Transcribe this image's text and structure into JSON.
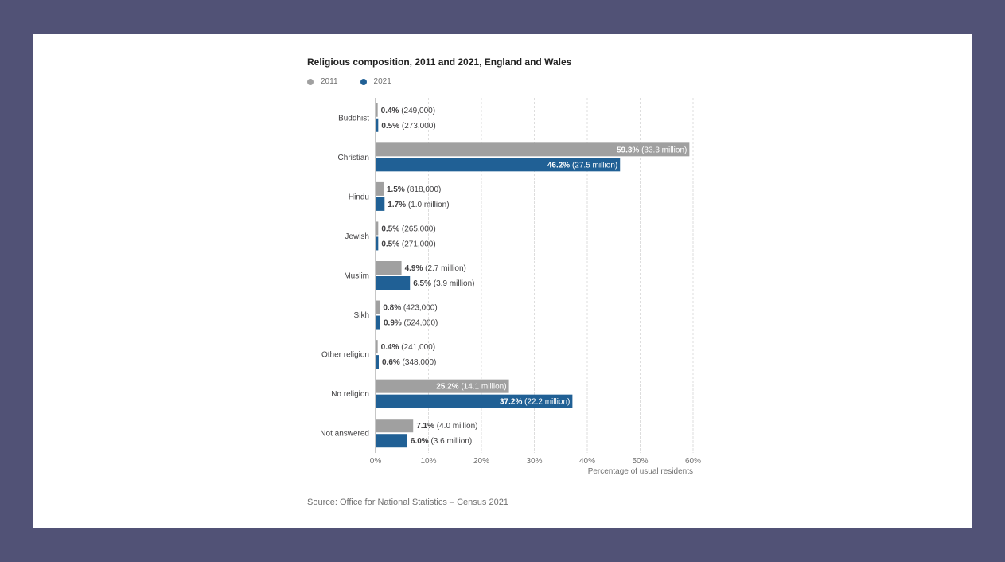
{
  "title": "Religious composition, 2011 and 2021, England and Wales",
  "source": "Source: Office for National Statistics – Census 2021",
  "colors": {
    "s2011": "#a0a0a0",
    "s2021": "#206095",
    "grid": "#dddddd",
    "axis": "#8c8c8c",
    "background": "#515276"
  },
  "chart_data": {
    "type": "bar",
    "orientation": "horizontal",
    "title": "Religious composition, 2011 and 2021, England and Wales",
    "xlabel": "Percentage of usual residents",
    "ylabel": "",
    "xlim": [
      0,
      60
    ],
    "xticks": [
      0,
      10,
      20,
      30,
      40,
      50,
      60
    ],
    "xtick_labels": [
      "0%",
      "10%",
      "20%",
      "30%",
      "40%",
      "50%",
      "60%"
    ],
    "grid": "vertical dashed",
    "legend_position": "top-left",
    "categories": [
      "Buddhist",
      "Christian",
      "Hindu",
      "Jewish",
      "Muslim",
      "Sikh",
      "Other religion",
      "No religion",
      "Not answered"
    ],
    "series": [
      {
        "name": "2011",
        "values": [
          0.4,
          59.3,
          1.5,
          0.5,
          4.9,
          0.8,
          0.4,
          25.2,
          7.1
        ],
        "value_labels": [
          "0.4%",
          "59.3%",
          "1.5%",
          "0.5%",
          "4.9%",
          "0.8%",
          "0.4%",
          "25.2%",
          "7.1%"
        ],
        "count_labels": [
          "(249,000)",
          "(33.3 million)",
          "(818,000)",
          "(265,000)",
          "(2.7 million)",
          "(423,000)",
          "(241,000)",
          "(14.1 million)",
          "(4.0 million)"
        ]
      },
      {
        "name": "2021",
        "values": [
          0.5,
          46.2,
          1.7,
          0.5,
          6.5,
          0.9,
          0.6,
          37.2,
          6.0
        ],
        "value_labels": [
          "0.5%",
          "46.2%",
          "1.7%",
          "0.5%",
          "6.5%",
          "0.9%",
          "0.6%",
          "37.2%",
          "6.0%"
        ],
        "count_labels": [
          "(273,000)",
          "(27.5 million)",
          "(1.0 million)",
          "(271,000)",
          "(3.9 million)",
          "(524,000)",
          "(348,000)",
          "(22.2 million)",
          "(3.6 million)"
        ]
      }
    ]
  }
}
